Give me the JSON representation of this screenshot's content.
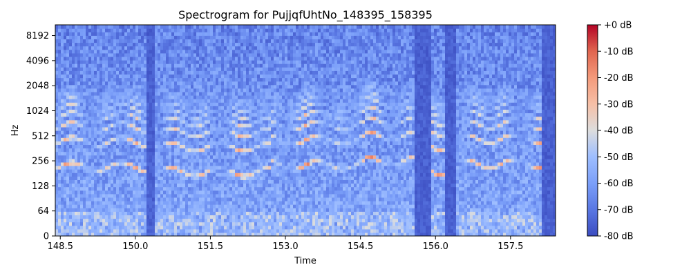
{
  "chart_data": {
    "type": "heatmap",
    "title": "Spectrogram for PujjqfUhtNo_148395_158395",
    "xlabel": "Time",
    "ylabel": "Hz",
    "x_range": [
      148.4,
      158.4
    ],
    "x_ticks": [
      148.5,
      150.0,
      151.5,
      153.0,
      154.5,
      156.0,
      157.5
    ],
    "x_tick_labels": [
      "148.5",
      "150.0",
      "151.5",
      "153.0",
      "154.5",
      "156.0",
      "157.5"
    ],
    "y_scale": "symlog",
    "y_range": [
      0,
      11025
    ],
    "y_ticks": [
      0,
      64,
      128,
      256,
      512,
      1024,
      2048,
      4096,
      8192
    ],
    "y_tick_labels": [
      "0",
      "64",
      "128",
      "256",
      "512",
      "1024",
      "2048",
      "4096",
      "8192"
    ],
    "colormap": "coolwarm",
    "colorbar": {
      "range": [
        -80,
        0
      ],
      "ticks": [
        0,
        -10,
        -20,
        -30,
        -40,
        -50,
        -60,
        -70,
        -80
      ],
      "tick_labels": [
        "+0 dB",
        "-10 dB",
        "-20 dB",
        "-30 dB",
        "-40 dB",
        "-50 dB",
        "-60 dB",
        "-70 dB",
        "-80 dB"
      ]
    },
    "silent_intervals": [
      [
        150.2,
        150.4
      ],
      [
        155.6,
        155.9
      ],
      [
        156.2,
        156.4
      ],
      [
        158.1,
        158.4
      ]
    ],
    "harmonic_bands": [
      {
        "t_start": 148.4,
        "t_end": 150.2,
        "f0_hz": 220
      },
      {
        "t_start": 150.4,
        "t_end": 152.7,
        "f0_hz": 190
      },
      {
        "t_start": 152.7,
        "t_end": 154.6,
        "f0_hz": 230
      },
      {
        "t_start": 154.6,
        "t_end": 155.6,
        "f0_hz": 260
      },
      {
        "t_start": 155.9,
        "t_end": 156.2,
        "f0_hz": 200
      },
      {
        "t_start": 156.4,
        "t_end": 158.1,
        "f0_hz": 240
      }
    ]
  },
  "colors": {
    "low": "#3b4cc0",
    "mid": "#dddddd",
    "high": "#b40426"
  }
}
